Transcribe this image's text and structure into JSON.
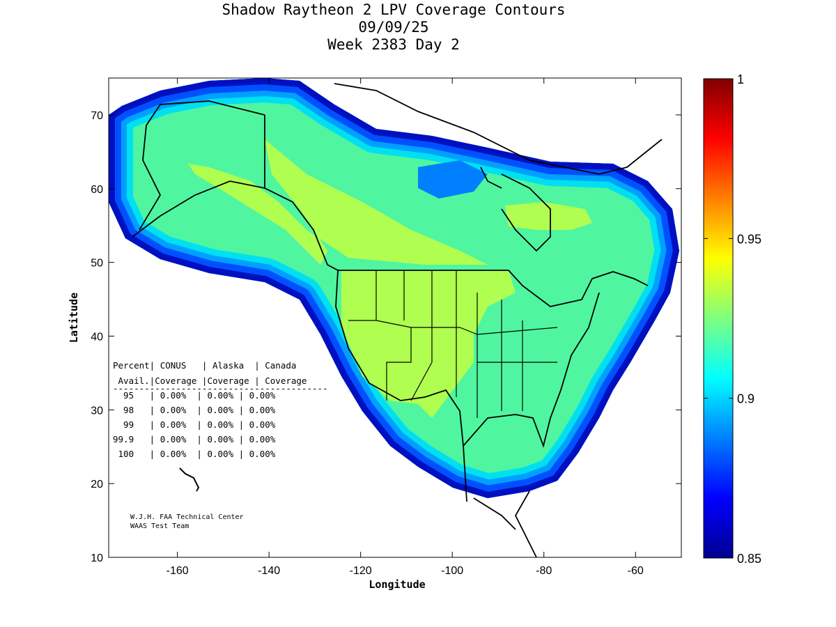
{
  "title": {
    "line1": "Shadow Raytheon 2 LPV Coverage Contours",
    "line2": "09/09/25",
    "line3": "Week 2383 Day 2"
  },
  "chart_data": {
    "type": "heatmap",
    "title": "Shadow Raytheon 2 LPV Coverage Contours",
    "xlabel": "Longitude",
    "ylabel": "Latitude",
    "xlim": [
      -175,
      -50
    ],
    "ylim": [
      10,
      75
    ],
    "xticks": [
      -160,
      -140,
      -120,
      -100,
      -80,
      -60
    ],
    "yticks": [
      10,
      20,
      30,
      40,
      50,
      60,
      70
    ],
    "colorbar": {
      "range": [
        0.85,
        1
      ],
      "ticks": [
        "0.85",
        "0.9",
        "0.95",
        "1"
      ],
      "colormap": "jet"
    }
  },
  "table": {
    "header1": "Percent| CONUS   | Alaska  | Canada",
    "header2": " Avail.|Coverage |Coverage | Coverage",
    "rule": "-----------------------------------------",
    "rows": [
      "  95   | 0.00%  | 0.00% | 0.00%",
      "  98   | 0.00%  | 0.00% | 0.00%",
      "  99   | 0.00%  | 0.00% | 0.00%",
      "99.9   | 0.00%  | 0.00% | 0.00%",
      " 100   | 0.00%  | 0.00% | 0.00%"
    ]
  },
  "credits": {
    "line1": "W.J.H. FAA Technical Center",
    "line2": "WAAS Test Team"
  },
  "colors": {
    "dark_blue": "#0010c0",
    "blue": "#0050ff",
    "light_blue": "#00a0ff",
    "cyan": "#00e0f0",
    "green": "#50f5a0",
    "yellow_green": "#b0ff50"
  }
}
